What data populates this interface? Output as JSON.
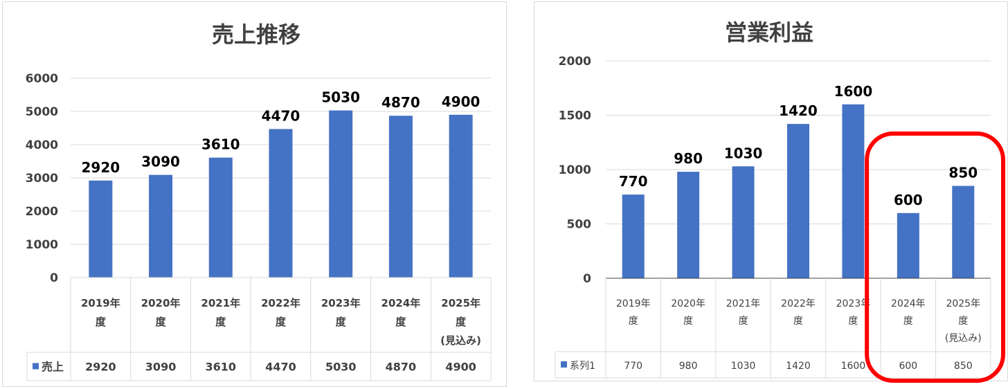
{
  "chart_data": [
    {
      "type": "bar",
      "title": "売上推移",
      "categories": [
        [
          "2019年",
          "度"
        ],
        [
          "2020年",
          "度"
        ],
        [
          "2021年",
          "度"
        ],
        [
          "2022年",
          "度"
        ],
        [
          "2023年",
          "度"
        ],
        [
          "2024年",
          "度"
        ],
        [
          "2025年",
          "度",
          "(見込み)"
        ]
      ],
      "series": [
        {
          "name": "売上",
          "values": [
            2920,
            3090,
            3610,
            4470,
            5030,
            4870,
            4900
          ]
        }
      ],
      "ylim": [
        0,
        6000
      ],
      "yticks": [
        "0",
        "1000",
        "2000",
        "3000",
        "4000",
        "5000",
        "6000"
      ],
      "grid": true,
      "legend": "data-table",
      "bar_color": "#4472c4"
    },
    {
      "type": "bar",
      "title": "営業利益",
      "categories": [
        [
          "2019年",
          "度"
        ],
        [
          "2020年",
          "度"
        ],
        [
          "2021年",
          "度"
        ],
        [
          "2022年",
          "度"
        ],
        [
          "2023年",
          "度"
        ],
        [
          "2024年",
          "度"
        ],
        [
          "2025年",
          "度",
          "(見込み)"
        ]
      ],
      "series": [
        {
          "name": "系列1",
          "values": [
            770,
            980,
            1030,
            1420,
            1600,
            600,
            850
          ]
        }
      ],
      "ylim": [
        0,
        2000
      ],
      "yticks": [
        "0",
        "500",
        "1000",
        "1500",
        "2000"
      ],
      "grid": true,
      "legend": "data-table",
      "bar_color": "#4472c4",
      "highlight": {
        "categories": [
          "2024年度",
          "2025年度(見込み)"
        ],
        "color": "#ff0000"
      }
    }
  ]
}
